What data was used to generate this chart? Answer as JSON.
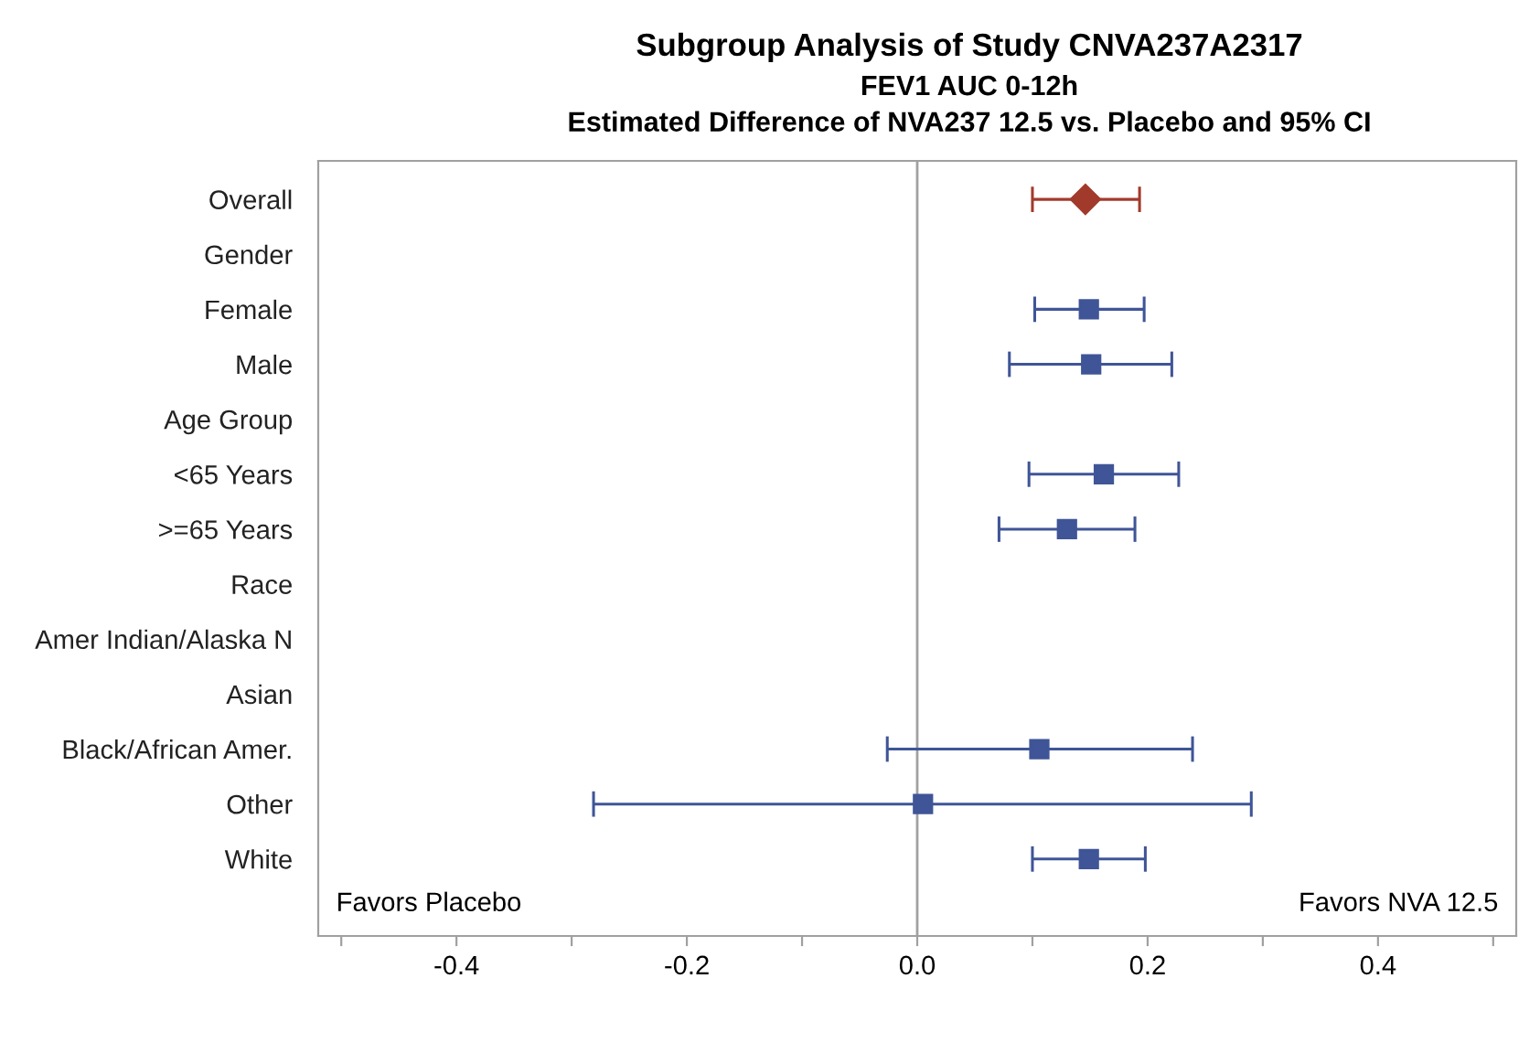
{
  "chart_data": {
    "type": "scatter",
    "orientation": "horizontal",
    "title": "Subgroup Analysis of Study CNVA237A2317",
    "subtitle": "FEV1 AUC 0-12h\nEstimated Difference of NVA237 12.5 vs. Placebo and 95% CI",
    "categories": [
      "Overall",
      "Gender",
      "Female",
      "Male",
      "Age Group",
      "<65 Years",
      ">=65 Years",
      "Race",
      "Amer Indian/Alaska N",
      "Asian",
      "Black/African Amer.",
      "Other",
      "White"
    ],
    "series": [
      {
        "color": "#a23a2c",
        "marker": "diamond",
        "values": [
          0.146,
          null,
          null,
          null,
          null,
          null,
          null,
          null,
          null,
          null,
          null,
          null,
          null
        ],
        "errors": [
          [
            0.1,
            0.193
          ],
          null,
          null,
          null,
          null,
          null,
          null,
          null,
          null,
          null,
          null,
          null,
          null
        ]
      },
      {
        "color": "#3f5597",
        "marker": "square",
        "values": [
          null,
          null,
          0.149,
          0.151,
          null,
          0.162,
          0.13,
          null,
          null,
          null,
          0.106,
          0.005,
          0.149
        ],
        "errors": [
          null,
          null,
          [
            0.102,
            0.197
          ],
          [
            0.08,
            0.221
          ],
          null,
          [
            0.097,
            0.227
          ],
          [
            0.071,
            0.189
          ],
          null,
          null,
          null,
          [
            -0.026,
            0.239
          ],
          [
            -0.281,
            0.29
          ],
          [
            0.1,
            0.198
          ]
        ]
      }
    ],
    "xlim": [
      -0.52,
      0.52
    ],
    "xticks": [
      {
        "value": -0.5,
        "label": null
      },
      -0.4,
      {
        "value": -0.3,
        "label": null
      },
      -0.2,
      {
        "value": -0.1,
        "label": null
      },
      {
        "value": 0.0,
        "label": "0.0"
      },
      {
        "value": 0.1,
        "label": null
      },
      0.2,
      {
        "value": 0.3,
        "label": null
      },
      0.4,
      {
        "value": 0.5,
        "label": null
      }
    ],
    "ref_lines": [
      {
        "axis": "x",
        "value": 0,
        "color": "#a0a0a0"
      }
    ],
    "annotations": [
      "Favors Placebo",
      "Favors NVA 12.5"
    ],
    "grid": false,
    "legend": false
  }
}
